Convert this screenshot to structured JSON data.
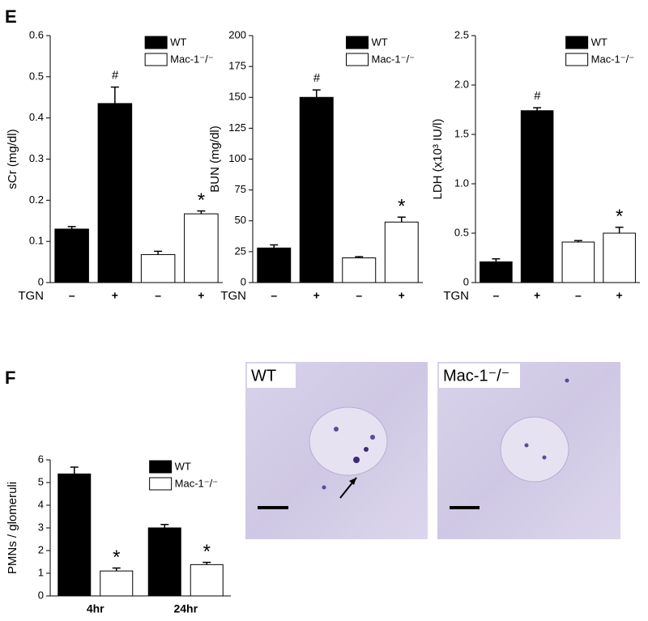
{
  "panels": [
    "E",
    "F"
  ],
  "images": [
    {
      "label": "WT"
    },
    {
      "label": "Mac-1⁻/⁻"
    }
  ],
  "chart_data": [
    {
      "type": "bar",
      "ylabel": "sCr (mg/dl)",
      "xlabel": "TGN",
      "categories": [
        "–",
        "+",
        "–",
        "+"
      ],
      "ylim": [
        0,
        0.6
      ],
      "yticks": [
        0,
        0.1,
        0.2,
        0.3,
        0.4,
        0.5,
        0.6
      ],
      "legend": "upper right",
      "series": [
        {
          "name": "WT",
          "color": "#000000",
          "values": [
            0.13,
            0.435,
            null,
            null
          ],
          "errors": [
            0.006,
            0.04,
            null,
            null
          ],
          "annotations": [
            null,
            "#",
            null,
            null
          ]
        },
        {
          "name": "Mac-1⁻/⁻",
          "color": "#ffffff",
          "values": [
            null,
            null,
            0.068,
            0.167
          ],
          "errors": [
            null,
            null,
            0.008,
            0.007
          ],
          "annotations": [
            null,
            null,
            null,
            "*"
          ]
        }
      ]
    },
    {
      "type": "bar",
      "ylabel": "BUN (mg/dl)",
      "xlabel": "TGN",
      "categories": [
        "–",
        "+",
        "–",
        "+"
      ],
      "ylim": [
        0,
        200
      ],
      "yticks": [
        0,
        25,
        50,
        75,
        100,
        125,
        150,
        175,
        200
      ],
      "legend": "upper right",
      "series": [
        {
          "name": "WT",
          "color": "#000000",
          "values": [
            28,
            150,
            null,
            null
          ],
          "errors": [
            2.5,
            6,
            null,
            null
          ],
          "annotations": [
            null,
            "#",
            null,
            null
          ]
        },
        {
          "name": "Mac-1⁻/⁻",
          "color": "#ffffff",
          "values": [
            null,
            null,
            20,
            49
          ],
          "errors": [
            null,
            null,
            1,
            4
          ],
          "annotations": [
            null,
            null,
            null,
            "*"
          ]
        }
      ]
    },
    {
      "type": "bar",
      "ylabel": "LDH (x10³ IU/l)",
      "xlabel": "TGN",
      "categories": [
        "–",
        "+",
        "–",
        "+"
      ],
      "ylim": [
        0,
        2.5
      ],
      "yticks": [
        0,
        0.5,
        {
          "value": 1,
          "label": "1.0"
        },
        1.5,
        {
          "value": 2,
          "label": "2.0"
        },
        2.5
      ],
      "legend": "upper right",
      "series": [
        {
          "name": "WT",
          "color": "#000000",
          "values": [
            0.21,
            1.74,
            null,
            null
          ],
          "errors": [
            0.03,
            0.03,
            null,
            null
          ],
          "annotations": [
            null,
            "#",
            null,
            null
          ]
        },
        {
          "name": "Mac-1⁻/⁻",
          "color": "#ffffff",
          "values": [
            null,
            null,
            0.41,
            0.5
          ],
          "errors": [
            null,
            null,
            0.015,
            0.06
          ],
          "annotations": [
            null,
            null,
            null,
            "*"
          ]
        }
      ]
    },
    {
      "type": "bar",
      "ylabel": "PMNs / glomeruli",
      "categories": [
        "4hr",
        "24hr"
      ],
      "ylim": [
        0,
        6
      ],
      "yticks": [
        0,
        1,
        2,
        3,
        4,
        5,
        6
      ],
      "legend": "upper right",
      "series": [
        {
          "name": "WT",
          "color": "#000000",
          "values": [
            5.38,
            3.0
          ],
          "errors": [
            0.3,
            0.15
          ],
          "annotations": [
            null,
            null
          ]
        },
        {
          "name": "Mac-1⁻/⁻",
          "color": "#ffffff",
          "values": [
            1.1,
            1.38
          ],
          "errors": [
            0.13,
            0.1
          ],
          "annotations": [
            "*",
            "*"
          ]
        }
      ]
    }
  ]
}
